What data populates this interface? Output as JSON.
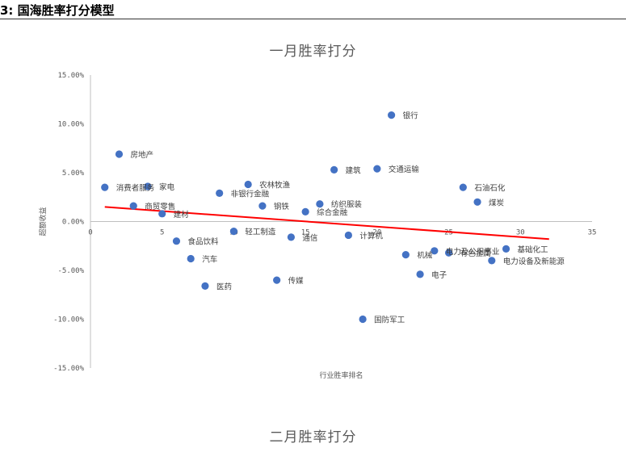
{
  "header": {
    "title": "3:  国海胜率打分模型"
  },
  "chart_data": {
    "type": "scatter",
    "title": "一月胜率打分",
    "next_title": "二月胜率打分",
    "xlabel": "行业胜率排名",
    "ylabel": "超额收益",
    "xlim": [
      0,
      35
    ],
    "ylim": [
      -15,
      15
    ],
    "xticks": [
      "0",
      "5",
      "10",
      "15",
      "20",
      "25",
      "30",
      "35"
    ],
    "yticks": [
      "15.00%",
      "10.00%",
      "5.00%",
      "0.00%",
      "-5.00%",
      "-10.00%",
      "-15.00%"
    ],
    "point_color": "#4472c4",
    "trend_color": "#ff0000",
    "trendline": {
      "x": [
        1,
        32
      ],
      "y": [
        1.5,
        -1.8
      ]
    },
    "points": [
      {
        "x": 1,
        "y": 3.5,
        "label": "消费者服务"
      },
      {
        "x": 2,
        "y": 6.9,
        "label": "房地产"
      },
      {
        "x": 3,
        "y": 1.6,
        "label": "商贸零售"
      },
      {
        "x": 4,
        "y": 3.6,
        "label": "家电"
      },
      {
        "x": 5,
        "y": 0.8,
        "label": "建材"
      },
      {
        "x": 6,
        "y": -2.0,
        "label": "食品饮料"
      },
      {
        "x": 7,
        "y": -3.8,
        "label": "汽车"
      },
      {
        "x": 8,
        "y": -6.6,
        "label": "医药"
      },
      {
        "x": 9,
        "y": 2.9,
        "label": "非银行金融"
      },
      {
        "x": 10,
        "y": -1.0,
        "label": "轻工制造"
      },
      {
        "x": 11,
        "y": 3.8,
        "label": "农林牧渔"
      },
      {
        "x": 12,
        "y": 1.6,
        "label": "钢铁"
      },
      {
        "x": 13,
        "y": -6.0,
        "label": "传媒"
      },
      {
        "x": 14,
        "y": -1.6,
        "label": "通信"
      },
      {
        "x": 15,
        "y": 1.0,
        "label": "综合金融"
      },
      {
        "x": 16,
        "y": 1.8,
        "label": "纺织服装"
      },
      {
        "x": 17,
        "y": 5.3,
        "label": "建筑"
      },
      {
        "x": 18,
        "y": -1.4,
        "label": "计算机"
      },
      {
        "x": 19,
        "y": -10.0,
        "label": "国防军工"
      },
      {
        "x": 20,
        "y": 5.4,
        "label": "交通运输"
      },
      {
        "x": 21,
        "y": 10.9,
        "label": "银行"
      },
      {
        "x": 22,
        "y": -3.4,
        "label": "机械"
      },
      {
        "x": 23,
        "y": -5.4,
        "label": "电子"
      },
      {
        "x": 24,
        "y": -3.0,
        "label": "电力及公用事业"
      },
      {
        "x": 25,
        "y": -3.2,
        "label": "有色金属"
      },
      {
        "x": 26,
        "y": 3.5,
        "label": "石油石化"
      },
      {
        "x": 27,
        "y": 2.0,
        "label": "煤炭"
      },
      {
        "x": 28,
        "y": -4.0,
        "label": "电力设备及新能源"
      },
      {
        "x": 29,
        "y": -2.8,
        "label": "基础化工"
      }
    ]
  }
}
